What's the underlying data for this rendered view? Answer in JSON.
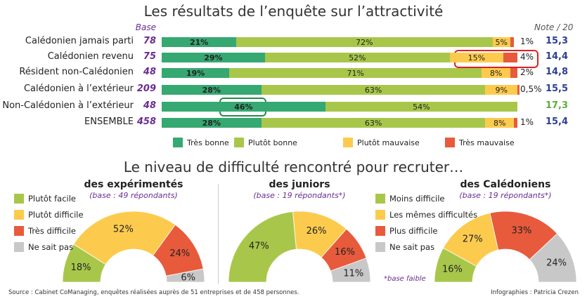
{
  "title1": "Les résultats de l’enquête sur l’attractivité",
  "title2": "Le niveau de difficulté rencontré pour recruter…",
  "colors": {
    "tres_bonne": "#36a872",
    "plutot_bonne": "#a8c74a",
    "plutot_mauvaise": "#fccb4e",
    "tres_mauvaise": "#e85a3c",
    "gris": "#c8c8c8",
    "purple": "#6a2c91",
    "note_blue": "#2d3f96",
    "note_green": "#5aae3a"
  },
  "chart_data": [
    {
      "type": "bar",
      "stacked": true,
      "orientation": "horizontal",
      "title": "Les résultats de l’enquête sur l’attractivité",
      "base_label": "Base",
      "note_label": "Note / 20",
      "categories": [
        "Calédonien jamais parti",
        "Calédonien revenu",
        "Résident non-Calédonien",
        "Calédonien à l’extérieur",
        "Non-Calédonien à l’extérieur",
        "ENSEMBLE"
      ],
      "bases": [
        "78",
        "75",
        "48",
        "209",
        "48",
        "458"
      ],
      "notes": [
        "15,3",
        "14,4",
        "14,8",
        "15,5",
        "17,3",
        "15,4"
      ],
      "series": [
        {
          "name": "Très bonne",
          "values": [
            21,
            29,
            19,
            28,
            46,
            28
          ],
          "labels": [
            "21%",
            "29%",
            "19%",
            "28%",
            "46%",
            "28%"
          ]
        },
        {
          "name": "Plutôt bonne",
          "values": [
            72,
            52,
            71,
            63,
            54,
            63
          ],
          "labels": [
            "72%",
            "52%",
            "71%",
            "63%",
            "54%",
            "63%"
          ]
        },
        {
          "name": "Plutôt mauvaise",
          "values": [
            5,
            15,
            8,
            9,
            0,
            8
          ],
          "labels": [
            "5%",
            "15%",
            "8%",
            "9%",
            "",
            ""
          ]
        },
        {
          "name": "Très mauvaise",
          "values": [
            1,
            4,
            2,
            0.5,
            0,
            1
          ],
          "labels": [
            "1%",
            "4%",
            "2%",
            "0,5%",
            "",
            "1%"
          ]
        }
      ],
      "ensemble_plutot_mauvaise_label": "8%",
      "legend": [
        "Très bonne",
        "Plutôt bonne",
        "Plutôt mauvaise",
        "Très mauvaise"
      ],
      "legend_placement": "bottom"
    },
    {
      "type": "pie",
      "variant": "half-donut",
      "title": "des expérimentés",
      "subtitle": "(base : 49 répondants)",
      "categories": [
        "Plutôt facile",
        "Plutôt difficile",
        "Très difficile",
        "Ne sait pas"
      ],
      "values": [
        18,
        52,
        24,
        6
      ],
      "labels": [
        "18%",
        "52%",
        "24%",
        "6%"
      ]
    },
    {
      "type": "pie",
      "variant": "half-donut",
      "title": "des juniors",
      "subtitle": "(base : 19 répondants*)",
      "categories": [
        "Plutôt facile",
        "Plutôt difficile",
        "Très difficile",
        "Ne sait pas"
      ],
      "values": [
        47,
        26,
        16,
        11
      ],
      "labels": [
        "47%",
        "26%",
        "16%",
        "11%"
      ]
    },
    {
      "type": "pie",
      "variant": "half-donut",
      "title": "des Calédoniens",
      "subtitle": "(base : 19 répondants*)",
      "categories": [
        "Moins difficile",
        "Les mêmes difficultés",
        "Plus difficile",
        "Ne sait pas"
      ],
      "values": [
        16,
        27,
        33,
        24
      ],
      "labels": [
        "16%",
        "27%",
        "33%",
        "24%"
      ]
    }
  ],
  "legend_left": [
    "Plutôt facile",
    "Plutôt difficile",
    "Très difficile",
    "Ne sait pas"
  ],
  "legend_right": [
    "Moins difficile",
    "Les mêmes difficultés",
    "Plus difficile",
    "Ne sait pas"
  ],
  "base_faible": "*base faible",
  "source": "Source : Cabinet CoManaging, enquêtes réalisées auprès de 51 entreprises et de 458 personnes.",
  "credit": "Infographies : Patricia Crezen"
}
